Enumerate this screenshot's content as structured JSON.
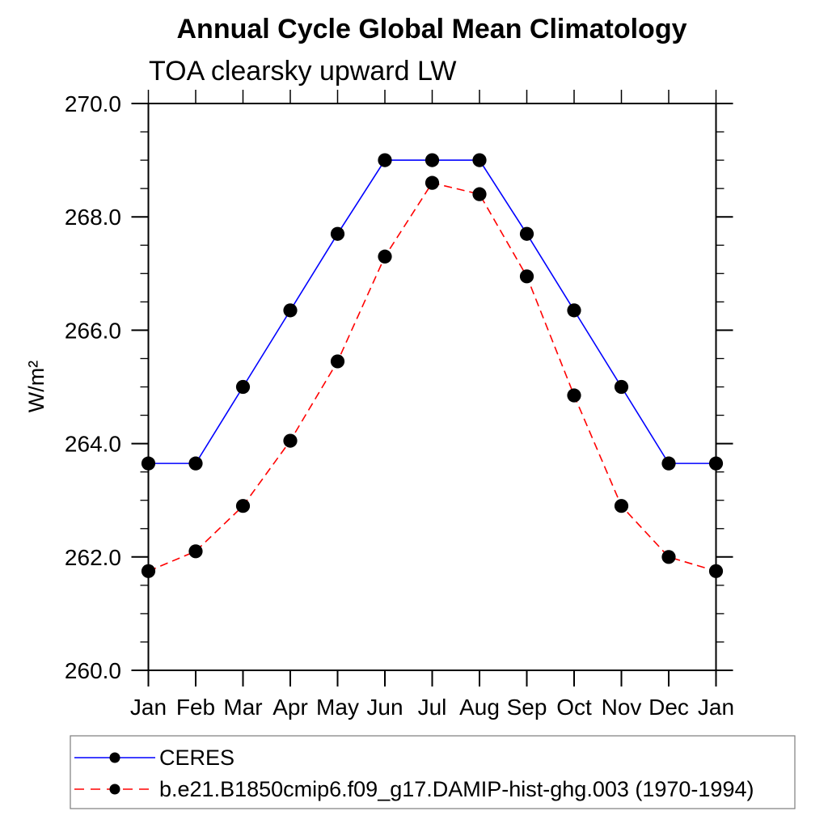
{
  "chart_data": {
    "type": "line",
    "title": "Annual Cycle Global Mean Climatology",
    "subtitle": "TOA clearsky upward LW",
    "ylabel": "W/m²",
    "xlabel": "",
    "categories": [
      "Jan",
      "Feb",
      "Mar",
      "Apr",
      "May",
      "Jun",
      "Jul",
      "Aug",
      "Sep",
      "Oct",
      "Nov",
      "Dec",
      "Jan"
    ],
    "ylim": [
      260.0,
      270.0
    ],
    "ytick_major_interval": 2.0,
    "ytick_minor_interval": 0.5,
    "ytick_labels": [
      "260.0",
      "262.0",
      "264.0",
      "266.0",
      "268.0",
      "270.0"
    ],
    "grid": false,
    "legend_position": "bottom-left",
    "frame_color": "#000000",
    "marker_shape": "filled-circle",
    "series": [
      {
        "name": "CERES",
        "line_style": "solid",
        "color": "#0000ff",
        "marker_color": "#000000",
        "values": [
          263.65,
          263.65,
          265.0,
          266.35,
          267.7,
          269.0,
          269.0,
          269.0,
          267.7,
          266.35,
          265.0,
          263.65,
          263.65
        ]
      },
      {
        "name": "b.e21.B1850cmip6.f09_g17.DAMIP-hist-ghg.003 (1970-1994)",
        "line_style": "dashed",
        "color": "#ff0000",
        "marker_color": "#000000",
        "values": [
          261.75,
          262.1,
          262.9,
          264.05,
          265.45,
          267.3,
          268.6,
          268.4,
          266.95,
          264.85,
          262.9,
          262.0,
          261.75
        ]
      }
    ]
  }
}
